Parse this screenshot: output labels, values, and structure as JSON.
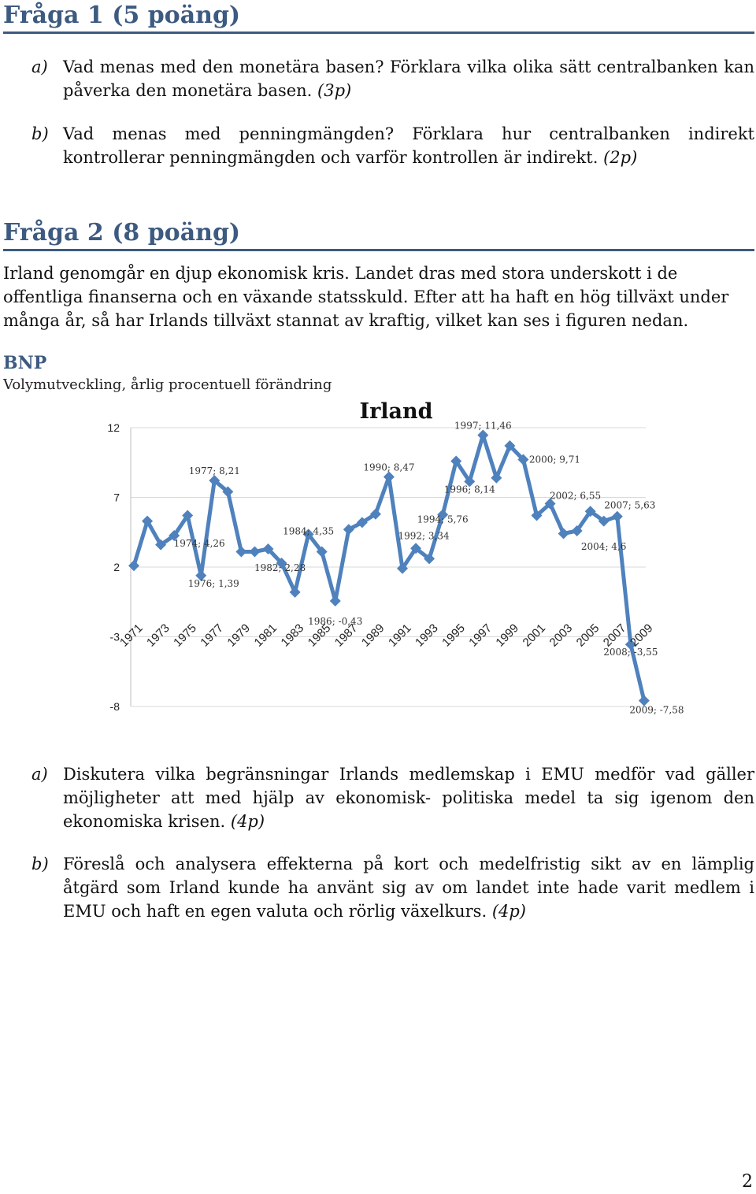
{
  "q1": {
    "heading": "Fråga 1 (5 poäng)",
    "a": {
      "label": "a)",
      "text": "Vad menas med den monetära basen? Förklara vilka olika sätt centralbanken kan påverka den monetära basen.",
      "points": "(3p)"
    },
    "b": {
      "label": "b)",
      "text": "Vad menas med penningmängden? Förklara hur centralbanken indirekt kontrollerar penningmängden och varför kontrollen är indirekt.",
      "points": "(2p)"
    }
  },
  "q2": {
    "heading": "Fråga 2 (8 poäng)",
    "intro": "Irland genomgår en djup ekonomisk kris. Landet dras med stora underskott i de offentliga finanserna och en växande statsskuld. Efter att ha haft en hög tillväxt under många år, så har Irlands tillväxt stannat av kraftig, vilket kan ses i figuren nedan.",
    "figure_label": "BNP",
    "figure_sub": "Volymutveckling, årlig procentuell förändring",
    "a": {
      "label": "a)",
      "text": "Diskutera vilka begränsningar Irlands medlemskap i EMU medför vad gäller möjligheter att med hjälp av ekonomisk- politiska medel ta sig igenom den ekonomiska krisen.",
      "points": "(4p)"
    },
    "b": {
      "label": "b)",
      "text": "Föreslå och analysera effekterna på kort och medelfristig sikt av en lämplig åtgärd som Irland kunde ha använt sig av om landet inte hade varit medlem i EMU och haft en egen valuta och rörlig växelkurs.",
      "points": "(4p)"
    }
  },
  "chart_data": {
    "type": "line",
    "title": "Irland",
    "x": [
      1971,
      1972,
      1973,
      1974,
      1975,
      1976,
      1977,
      1978,
      1979,
      1980,
      1981,
      1982,
      1983,
      1984,
      1985,
      1986,
      1987,
      1988,
      1989,
      1990,
      1991,
      1992,
      1993,
      1994,
      1995,
      1996,
      1997,
      1998,
      1999,
      2000,
      2001,
      2002,
      2003,
      2004,
      2005,
      2006,
      2007,
      2008,
      2009
    ],
    "values": [
      2.1,
      5.3,
      3.6,
      4.26,
      5.7,
      1.39,
      8.21,
      7.4,
      3.1,
      3.1,
      3.3,
      2.28,
      0.2,
      4.35,
      3.1,
      -0.43,
      4.7,
      5.2,
      5.8,
      8.47,
      1.9,
      3.34,
      2.6,
      5.76,
      9.6,
      8.14,
      11.46,
      8.4,
      10.7,
      9.71,
      5.7,
      6.55,
      4.4,
      4.6,
      6.0,
      5.3,
      5.63,
      -3.55,
      -7.58
    ],
    "xtick_labels": [
      "1971",
      "1973",
      "1975",
      "1977",
      "1979",
      "1981",
      "1983",
      "1985",
      "1987",
      "1989",
      "1991",
      "1993",
      "1995",
      "1997",
      "1999",
      "2001",
      "2003",
      "2005",
      "2007",
      "2009"
    ],
    "yticks": [
      12,
      7,
      2,
      -3,
      -8
    ],
    "ylim": [
      -8,
      12
    ],
    "color": "#4f81bd",
    "data_labels": [
      {
        "text": "1974; 4,26",
        "year": 1974
      },
      {
        "text": "1976; 1,39",
        "year": 1976
      },
      {
        "text": "1977; 8,21",
        "year": 1977
      },
      {
        "text": "1982; 2,28",
        "year": 1982
      },
      {
        "text": "1984; 4,35",
        "year": 1984
      },
      {
        "text": "1986; -0,43",
        "year": 1986
      },
      {
        "text": "1990; 8,47",
        "year": 1990
      },
      {
        "text": "1992; 3,34",
        "year": 1992
      },
      {
        "text": "1994; 5,76",
        "year": 1994
      },
      {
        "text": "1996; 8,14",
        "year": 1996
      },
      {
        "text": "1997; 11,46",
        "year": 1997
      },
      {
        "text": "2000; 9,71",
        "year": 2000
      },
      {
        "text": "2002; 6,55",
        "year": 2002
      },
      {
        "text": "2004; 4,6",
        "year": 2004
      },
      {
        "text": "2007; 5,63",
        "year": 2007
      },
      {
        "text": "2008; -3,55",
        "year": 2008
      },
      {
        "text": "2009; -7,58",
        "year": 2009
      }
    ]
  },
  "page_number": "2"
}
